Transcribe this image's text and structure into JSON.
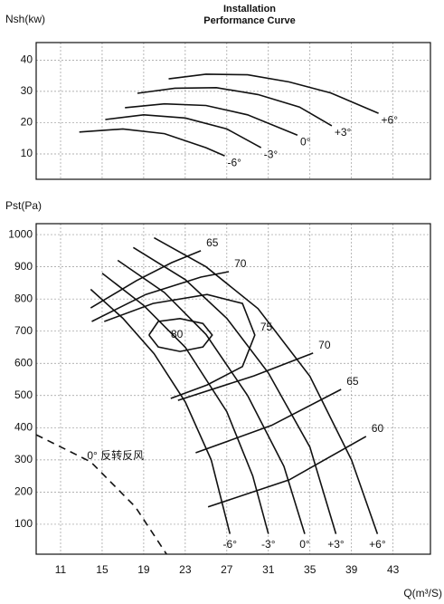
{
  "chart_data": [
    {
      "type": "line",
      "title": [
        "Installation",
        "Performance Curve"
      ],
      "ylabel": "Nsh(kw)",
      "xlim": [
        8.65,
        46.6
      ],
      "ylim": [
        1.9,
        45.6
      ],
      "xticks": [
        11,
        15,
        19,
        23,
        27,
        31,
        35,
        39,
        43
      ],
      "yticks": [
        10,
        20,
        30,
        40
      ],
      "grid": true,
      "series": [
        {
          "name": "-6°",
          "color": "#111111",
          "x": [
            12.8,
            17,
            21,
            25,
            26.8
          ],
          "values": [
            17,
            18,
            16.5,
            12,
            9.4
          ]
        },
        {
          "name": "-3°",
          "color": "#111111",
          "x": [
            15.3,
            19,
            23,
            27,
            30.3
          ],
          "values": [
            21,
            22.5,
            21.5,
            18,
            12
          ]
        },
        {
          "name": "0°",
          "color": "#111111",
          "x": [
            17.2,
            21,
            25,
            29,
            33.8
          ],
          "values": [
            24.8,
            26,
            25.5,
            22.5,
            16
          ]
        },
        {
          "name": "+3°",
          "color": "#111111",
          "x": [
            18.4,
            22,
            26,
            30,
            34,
            37.1
          ],
          "values": [
            29.4,
            31,
            31.2,
            29,
            25,
            19
          ]
        },
        {
          "name": "+6°",
          "color": "#111111",
          "x": [
            21.4,
            25,
            29,
            33,
            37,
            41.6
          ],
          "values": [
            34,
            35.5,
            35.3,
            33,
            29.5,
            23
          ]
        }
      ]
    },
    {
      "type": "line",
      "ylabel": "Pst(Pa)",
      "xlabel": "Q(m³/S)",
      "xlim": [
        8.65,
        46.6
      ],
      "ylim": [
        7,
        1034
      ],
      "xticks": [
        11,
        15,
        19,
        23,
        27,
        31,
        35,
        39,
        43
      ],
      "yticks": [
        100,
        200,
        300,
        400,
        500,
        600,
        700,
        800,
        900,
        1000
      ],
      "grid": true,
      "series": [
        {
          "name": "-6°",
          "color": "#111111",
          "kind": "pressure",
          "x": [
            13.9,
            17,
            20,
            23,
            25.5,
            27.3
          ],
          "values": [
            830,
            740,
            630,
            480,
            300,
            70
          ]
        },
        {
          "name": "-3°",
          "color": "#111111",
          "kind": "pressure",
          "x": [
            15,
            19,
            23,
            27,
            29.5,
            31
          ],
          "values": [
            880,
            780,
            650,
            450,
            250,
            70
          ]
        },
        {
          "name": "0°",
          "color": "#111111",
          "kind": "pressure",
          "x": [
            16.5,
            21,
            25,
            29,
            32.5,
            34.5
          ],
          "values": [
            920,
            820,
            690,
            500,
            280,
            70
          ]
        },
        {
          "name": "+3°",
          "color": "#111111",
          "kind": "pressure",
          "x": [
            18,
            23,
            27,
            31,
            35,
            37.5
          ],
          "values": [
            960,
            860,
            740,
            570,
            340,
            70
          ]
        },
        {
          "name": "+6°",
          "color": "#111111",
          "kind": "pressure",
          "x": [
            20,
            25,
            30,
            35,
            39,
            41.5
          ],
          "values": [
            990,
            900,
            770,
            560,
            300,
            70
          ]
        },
        {
          "name": "65",
          "color": "#111111",
          "kind": "efficiency",
          "x": [
            13.9,
            18.3,
            21.7,
            24.5,
            null,
            24,
            31.3,
            38
          ],
          "values": [
            772,
            857,
            913,
            950,
            null,
            322,
            407,
            519
          ]
        },
        {
          "name": "70",
          "color": "#111111",
          "kind": "efficiency",
          "x": [
            14,
            19.2,
            24.5,
            27.2,
            null,
            22.3,
            29.6,
            35.3
          ],
          "values": [
            730,
            814,
            868,
            885,
            null,
            485,
            561,
            632
          ]
        },
        {
          "name": "75",
          "color": "#111111",
          "kind": "efficiency",
          "x": [
            15.2,
            19.9,
            25.1,
            28.5,
            29.7,
            28.5,
            25.1,
            21.6
          ],
          "values": [
            730,
            786,
            814,
            786,
            688,
            590,
            533,
            491
          ]
        },
        {
          "name": "80",
          "color": "#111111",
          "kind": "efficiency",
          "closed": true,
          "x": [
            19.5,
            20.4,
            22.5,
            24.7,
            25.6,
            24.7,
            22.5,
            20.4,
            19.5
          ],
          "values": [
            688,
            730,
            739,
            724,
            688,
            651,
            637,
            651,
            688
          ]
        },
        {
          "name": "60",
          "color": "#111111",
          "kind": "efficiency",
          "x": [
            25.2,
            33,
            40.4
          ],
          "values": [
            154,
            238,
            373
          ]
        },
        {
          "name": "0° 反转反风",
          "color": "#111111",
          "kind": "reverse",
          "dashed": true,
          "x": [
            8.65,
            13.9,
            18.2,
            21.2
          ],
          "values": [
            378,
            294,
            154,
            7
          ]
        }
      ]
    }
  ]
}
